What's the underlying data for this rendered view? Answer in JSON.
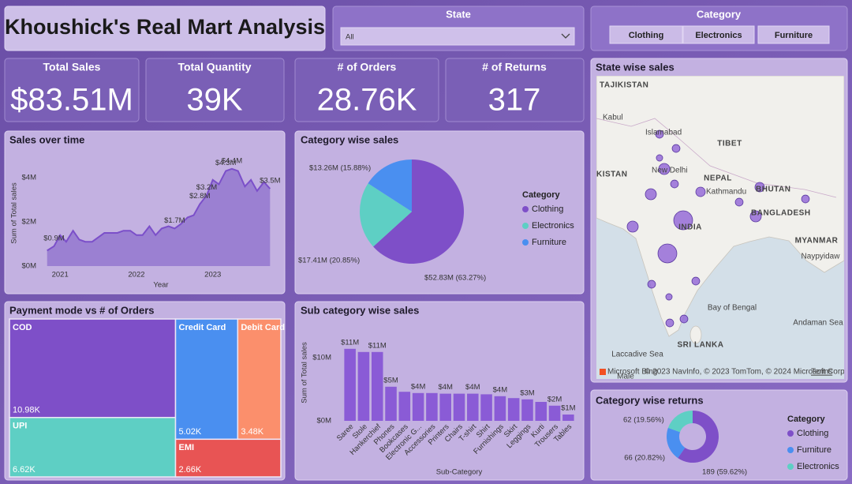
{
  "header": {
    "title": "Khoushick's Real Mart Analysis"
  },
  "slicers": {
    "state": {
      "label": "State",
      "value": "All"
    },
    "category": {
      "label": "Category",
      "options": [
        "Clothing",
        "Electronics",
        "Furniture"
      ]
    }
  },
  "kpis": [
    {
      "label": "Total Sales",
      "value": "$83.51M"
    },
    {
      "label": "Total Quantity",
      "value": "39K"
    },
    {
      "label": "# of Orders",
      "value": "28.76K"
    },
    {
      "label": "# of Returns",
      "value": "317"
    }
  ],
  "chart_data": [
    {
      "type": "area",
      "title": "Sales over time",
      "x_label": "Year",
      "y_label": "Sum of Total sales",
      "color": "#7b4fc9",
      "fill": "#9b80d2",
      "x": [
        2020.83,
        2020.92,
        2021.0,
        2021.08,
        2021.17,
        2021.25,
        2021.33,
        2021.42,
        2021.5,
        2021.58,
        2021.67,
        2021.75,
        2021.83,
        2021.92,
        2022.0,
        2022.08,
        2022.17,
        2022.25,
        2022.33,
        2022.42,
        2022.5,
        2022.58,
        2022.67,
        2022.75,
        2022.83,
        2022.92,
        2023.0,
        2023.08,
        2023.17,
        2023.25,
        2023.33,
        2023.42,
        2023.5,
        2023.58,
        2023.67,
        2023.75
      ],
      "values": [
        0.7,
        0.9,
        1.4,
        1.1,
        1.6,
        1.2,
        1.1,
        1.1,
        1.3,
        1.5,
        1.5,
        1.5,
        1.6,
        1.6,
        1.4,
        1.4,
        1.8,
        1.4,
        1.7,
        1.8,
        1.7,
        1.9,
        2.2,
        2.3,
        2.8,
        3.2,
        3.9,
        3.7,
        4.3,
        4.4,
        4.3,
        3.6,
        3.9,
        3.4,
        3.8,
        3.5
      ],
      "value_labels": [
        null,
        "$0.9M",
        null,
        null,
        null,
        null,
        null,
        null,
        null,
        null,
        null,
        null,
        null,
        null,
        null,
        null,
        null,
        null,
        null,
        null,
        "$1.7M",
        null,
        null,
        null,
        "$2.8M",
        "$3.2M",
        null,
        null,
        "$4.3M",
        "$4.4M",
        null,
        null,
        null,
        null,
        null,
        "$3.5M"
      ],
      "xlim": [
        2020.75,
        2023.85
      ],
      "xticks": [
        2021,
        2022,
        2023
      ],
      "ylim": [
        0,
        4.5
      ],
      "yticks": [
        {
          "value": 0,
          "label": "$0M"
        },
        {
          "value": 2,
          "label": "$2M"
        },
        {
          "value": 4,
          "label": "$4M"
        }
      ]
    },
    {
      "type": "pie",
      "title": "Category wise sales",
      "legend_title": "Category",
      "legend": "right",
      "categories": [
        "Clothing",
        "Electronics",
        "Furniture"
      ],
      "values": [
        52.83,
        17.41,
        13.26
      ],
      "value_labels": [
        "$52.83M (63.27%)",
        "$17.41M (20.85%)",
        "$13.26M (15.88%)"
      ],
      "colors": [
        "#7e4fc8",
        "#5ecfc4",
        "#4a8ff0"
      ]
    },
    {
      "type": "treemap",
      "title": "Payment mode vs # of Orders",
      "categories": [
        "COD",
        "UPI",
        "Credit Card",
        "Debit Card",
        "EMI"
      ],
      "values": [
        10980,
        6620,
        5020,
        3480,
        2660
      ],
      "value_labels": [
        "10.98K",
        "6.62K",
        "5.02K",
        "3.48K",
        "2.66K"
      ],
      "colors": [
        "#7e4fc8",
        "#5ecfc4",
        "#4a8ff0",
        "#fb8f6c",
        "#e85454"
      ]
    },
    {
      "type": "bar",
      "title": "Sub category wise sales",
      "x_label": "Sub-Category",
      "y_label": "Sum of Total sales",
      "color": "#8a5bd6",
      "categories": [
        "Saree",
        "Stole",
        "Hankerchief",
        "Phones",
        "Bookcases",
        "Electronic G...",
        "Accessories",
        "Printers",
        "Chairs",
        "T-shirt",
        "Shirt",
        "Furnishings",
        "Skirt",
        "Leggings",
        "Kurti",
        "Trousers",
        "Tables"
      ],
      "values": [
        11.4,
        10.9,
        10.9,
        5.4,
        4.6,
        4.4,
        4.4,
        4.3,
        4.3,
        4.3,
        4.2,
        3.9,
        3.6,
        3.4,
        3.0,
        2.4,
        1.0
      ],
      "value_labels": [
        "$11M",
        null,
        "$11M",
        "$5M",
        null,
        "$4M",
        null,
        "$4M",
        null,
        "$4M",
        null,
        "$4M",
        null,
        "$3M",
        null,
        "$2M",
        "$1M"
      ],
      "ylim": [
        0,
        13
      ],
      "yticks": [
        {
          "value": 0,
          "label": "$0M"
        },
        {
          "value": 10,
          "label": "$10M"
        }
      ]
    },
    {
      "type": "map",
      "title": "State wise sales",
      "color": "#8a5bd6",
      "values": [
        2.4,
        2.4,
        1.6,
        4.8,
        2.4,
        3.5,
        4.8,
        14,
        4.8,
        14,
        2.4,
        3.5,
        2.4,
        4.8,
        2.4,
        2.4,
        1.6,
        2.4,
        2.4
      ],
      "place_labels": [
        "TAJIKISTAN",
        "Kabul",
        "Islamabad",
        "TIBET",
        "New Delhi",
        "NEPAL",
        "Kathmandu",
        "BHUTAN",
        "KISTAN",
        "BANGLADESH",
        "INDIA",
        "MYANMAR",
        "Naypyidaw",
        "Bay of Bengal",
        "Andaman Sea",
        "SRI LANKA",
        "Laccadive Sea",
        "Male"
      ],
      "brand": "Microsoft Bing",
      "attribution": "© 2023 NavInfo, © 2023 TomTom, © 2024 Microsoft Corporation",
      "terms": "Terms"
    },
    {
      "type": "donut",
      "title": "Category wise returns",
      "legend_title": "Category",
      "legend": "right",
      "categories": [
        "Clothing",
        "Furniture",
        "Electronics"
      ],
      "values": [
        189,
        66,
        62
      ],
      "value_labels": [
        "189 (59.62%)",
        "66 (20.82%)",
        "62 (19.56%)"
      ],
      "colors": [
        "#7e4fc8",
        "#4a8ff0",
        "#5ecfc4"
      ]
    }
  ]
}
